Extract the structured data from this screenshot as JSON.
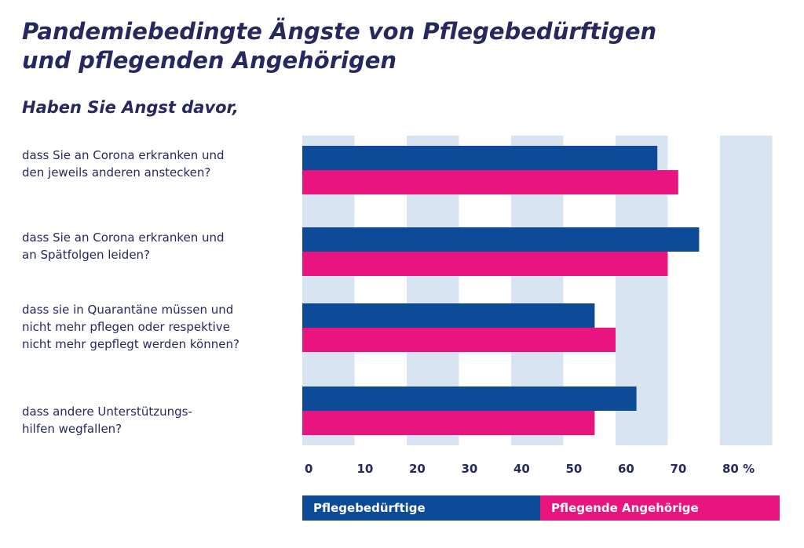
{
  "title": "Pandemiebedingte Ängste von Pflegebedürftigen und pflegenden Angehörigen",
  "subtitle": "Haben Sie Angst davor,",
  "chart_data": {
    "type": "bar",
    "orientation": "horizontal",
    "categories": [
      "dass Sie an Corona erkranken und\nden jeweils anderen anstecken?",
      "dass Sie an Corona erkranken und\nan Spätfolgen leiden?",
      "dass sie in Quarantäne müssen und\nnicht mehr pflegen oder respektive\nnicht mehr gepflegt werden können?",
      "dass andere Unterstützungs-\nhilfen wegfallen?"
    ],
    "series": [
      {
        "name": "Pflegebedürftige",
        "values": [
          68,
          76,
          56,
          64
        ],
        "color": "#0d4a97"
      },
      {
        "name": "Pflegende Angehörige",
        "values": [
          72,
          70,
          60,
          56
        ],
        "color": "#e8157e"
      }
    ],
    "xlim": [
      0,
      90
    ],
    "xticks": [
      0,
      10,
      20,
      30,
      40,
      50,
      60,
      70,
      80
    ],
    "tick_labels": [
      "0",
      "10",
      "20",
      "30",
      "40",
      "50",
      "60",
      "70",
      "80 %"
    ],
    "grid_band_color": "#d8e4f1",
    "legend": "bottom"
  }
}
